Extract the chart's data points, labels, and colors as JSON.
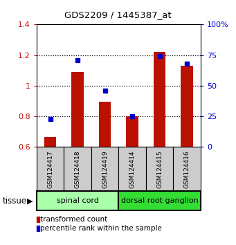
{
  "title": "GDS2209 / 1445387_at",
  "categories": [
    "GSM124417",
    "GSM124418",
    "GSM124419",
    "GSM124414",
    "GSM124415",
    "GSM124416"
  ],
  "red_values": [
    0.665,
    1.09,
    0.895,
    0.8,
    1.22,
    1.13
  ],
  "blue_values": [
    23,
    71,
    46,
    25,
    74,
    68
  ],
  "ylim_left": [
    0.6,
    1.4
  ],
  "ylim_right": [
    0,
    100
  ],
  "yticks_left": [
    0.6,
    0.8,
    1.0,
    1.2,
    1.4
  ],
  "yticks_right": [
    0,
    25,
    50,
    75,
    100
  ],
  "ytick_labels_right": [
    "0",
    "25",
    "50",
    "75",
    "100%"
  ],
  "red_color": "#bb1100",
  "blue_color": "#0000cc",
  "tissue_groups": [
    {
      "label": "spinal cord",
      "start": 0,
      "end": 3,
      "color": "#aaffaa"
    },
    {
      "label": "dorsal root ganglion",
      "start": 3,
      "end": 6,
      "color": "#33dd33"
    }
  ],
  "legend_red": "transformed count",
  "legend_blue": "percentile rank within the sample",
  "bar_width": 0.45,
  "bar_baseline": 0.6,
  "grid_yticks": [
    0.8,
    1.0,
    1.2
  ]
}
